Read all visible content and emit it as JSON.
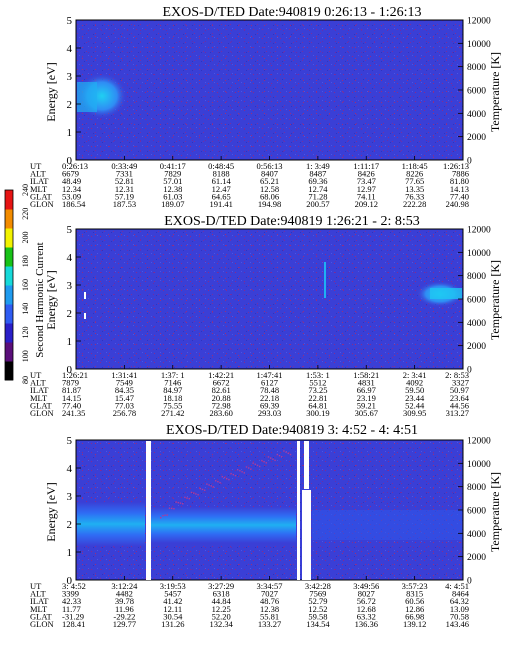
{
  "chart_data": [
    {
      "type": "heatmap",
      "title": "EXOS-D/TED   Date:940819   0:26:13 - 1:26:13",
      "ylabel": "Energy [eV]",
      "ylabel_right": "Temperature [K]",
      "ylim": [
        0,
        5
      ],
      "ylim_right": [
        0,
        12000
      ],
      "y_ticks": [
        "0",
        "1",
        "2",
        "3",
        "4",
        "5"
      ],
      "y_right_ticks": [
        "0",
        "2000",
        "4000",
        "6000",
        "8000",
        "10000",
        "12000"
      ],
      "ephemeris": [
        {
          "label": "UT",
          "values": [
            "0:26:13",
            "0:33:49",
            "0:41:17",
            "0:48:45",
            "0:56:13",
            "1: 3:49",
            "1:11:17",
            "1:18:45",
            "1:26:13"
          ]
        },
        {
          "label": "ALT",
          "values": [
            "6679",
            "7331",
            "7829",
            "8188",
            "8407",
            "8487",
            "8426",
            "8226",
            "7886"
          ]
        },
        {
          "label": "ILAT",
          "values": [
            "48.49",
            "52.81",
            "57.01",
            "61.14",
            "65.21",
            "69.36",
            "73.47",
            "77.65",
            "81.80"
          ]
        },
        {
          "label": "MLT",
          "values": [
            "12.34",
            "12.31",
            "12.38",
            "12.47",
            "12.58",
            "12.74",
            "12.97",
            "13.35",
            "14.13"
          ]
        },
        {
          "label": "GLAT",
          "values": [
            "53.09",
            "57.19",
            "61.03",
            "64.65",
            "68.06",
            "71.28",
            "74.11",
            "76.33",
            "77.40"
          ]
        },
        {
          "label": "GLON",
          "values": [
            "186.54",
            "187.53",
            "189.07",
            "191.41",
            "194.98",
            "200.57",
            "209.12",
            "222.28",
            "240.98"
          ]
        }
      ]
    },
    {
      "type": "heatmap",
      "title": "EXOS-D/TED   Date:940819   1:26:21 - 2: 8:53",
      "ylabel": "Energy [eV]",
      "ylabel_right": "Temperature [K]",
      "ylim": [
        0,
        5
      ],
      "ylim_right": [
        0,
        12000
      ],
      "y_ticks": [
        "0",
        "1",
        "2",
        "3",
        "4",
        "5"
      ],
      "y_right_ticks": [
        "0",
        "2000",
        "4000",
        "6000",
        "8000",
        "10000",
        "12000"
      ],
      "ephemeris": [
        {
          "label": "UT",
          "values": [
            "1:26:21",
            "1:31:41",
            "1:37: 1",
            "1:42:21",
            "1:47:41",
            "1:53: 1",
            "1:58:21",
            "2: 3:41",
            "2: 8:53"
          ]
        },
        {
          "label": "ALT",
          "values": [
            "7879",
            "7549",
            "7146",
            "6672",
            "6127",
            "5512",
            "4831",
            "4092",
            "3327"
          ]
        },
        {
          "label": "ILAT",
          "values": [
            "81.87",
            "84.35",
            "84.97",
            "82.61",
            "78.48",
            "73.25",
            "66.97",
            "59.50",
            "50.97"
          ]
        },
        {
          "label": "MLT",
          "values": [
            "14.15",
            "15.47",
            "18.18",
            "20.88",
            "22.18",
            "22.81",
            "23.19",
            "23.44",
            "23.64"
          ]
        },
        {
          "label": "GLAT",
          "values": [
            "77.40",
            "77.03",
            "75.55",
            "72.98",
            "69.39",
            "64.81",
            "59.21",
            "52.44",
            "44.56"
          ]
        },
        {
          "label": "GLON",
          "values": [
            "241.35",
            "256.78",
            "271.42",
            "283.60",
            "293.03",
            "300.19",
            "305.67",
            "309.95",
            "313.27"
          ]
        }
      ]
    },
    {
      "type": "heatmap",
      "title": "EXOS-D/TED   Date:940819   3: 4:52 - 4: 4:51",
      "ylabel": "Energy [eV]",
      "ylabel_right": "Temperature [K]",
      "ylim": [
        0,
        5
      ],
      "ylim_right": [
        0,
        12000
      ],
      "y_ticks": [
        "0",
        "1",
        "2",
        "3",
        "4",
        "5"
      ],
      "y_right_ticks": [
        "0",
        "2000",
        "4000",
        "6000",
        "8000",
        "10000",
        "12000"
      ],
      "ephemeris": [
        {
          "label": "UT",
          "values": [
            "3: 4:52",
            "3:12:24",
            "3:19:53",
            "3:27:29",
            "3:34:57",
            "3:42:28",
            "3:49:56",
            "3:57:23",
            "4: 4:51"
          ]
        },
        {
          "label": "ALT",
          "values": [
            "3399",
            "4482",
            "5457",
            "6318",
            "7027",
            "7569",
            "8027",
            "8315",
            "8464"
          ]
        },
        {
          "label": "ILAT",
          "values": [
            "42.33",
            "39.78",
            "41.42",
            "44.84",
            "48.76",
            "52.79",
            "56.72",
            "60.56",
            "64.32"
          ]
        },
        {
          "label": "MLT",
          "values": [
            "11.77",
            "11.96",
            "12.11",
            "12.25",
            "12.38",
            "12.52",
            "12.68",
            "12.86",
            "13.09"
          ]
        },
        {
          "label": "GLAT",
          "values": [
            "-31.29",
            "-29.22",
            "30.54",
            "52.20",
            "55.81",
            "59.58",
            "63.32",
            "66.98",
            "70.58"
          ]
        },
        {
          "label": "GLON",
          "values": [
            "128.41",
            "129.77",
            "131.26",
            "132.34",
            "133.27",
            "134.54",
            "136.36",
            "139.12",
            "143.46"
          ]
        }
      ]
    }
  ],
  "colorbar": {
    "label": "Second Harmonic Current",
    "ticks": [
      "80",
      "100",
      "120",
      "140",
      "160",
      "180",
      "200",
      "220",
      "240"
    ],
    "colors": [
      "#000000",
      "#5a0f7a",
      "#2a1fc8",
      "#2f5cf2",
      "#1f9bef",
      "#16d9d9",
      "#18c218",
      "#f2f200",
      "#f28c00",
      "#e61414"
    ]
  },
  "colors": {
    "background_field": "#3a3fd6",
    "speckle": "#8a2a8c",
    "enhanced_low": "#2f6cf4",
    "enhanced_high": "#1fb0f2",
    "gap": "#ffffff"
  }
}
